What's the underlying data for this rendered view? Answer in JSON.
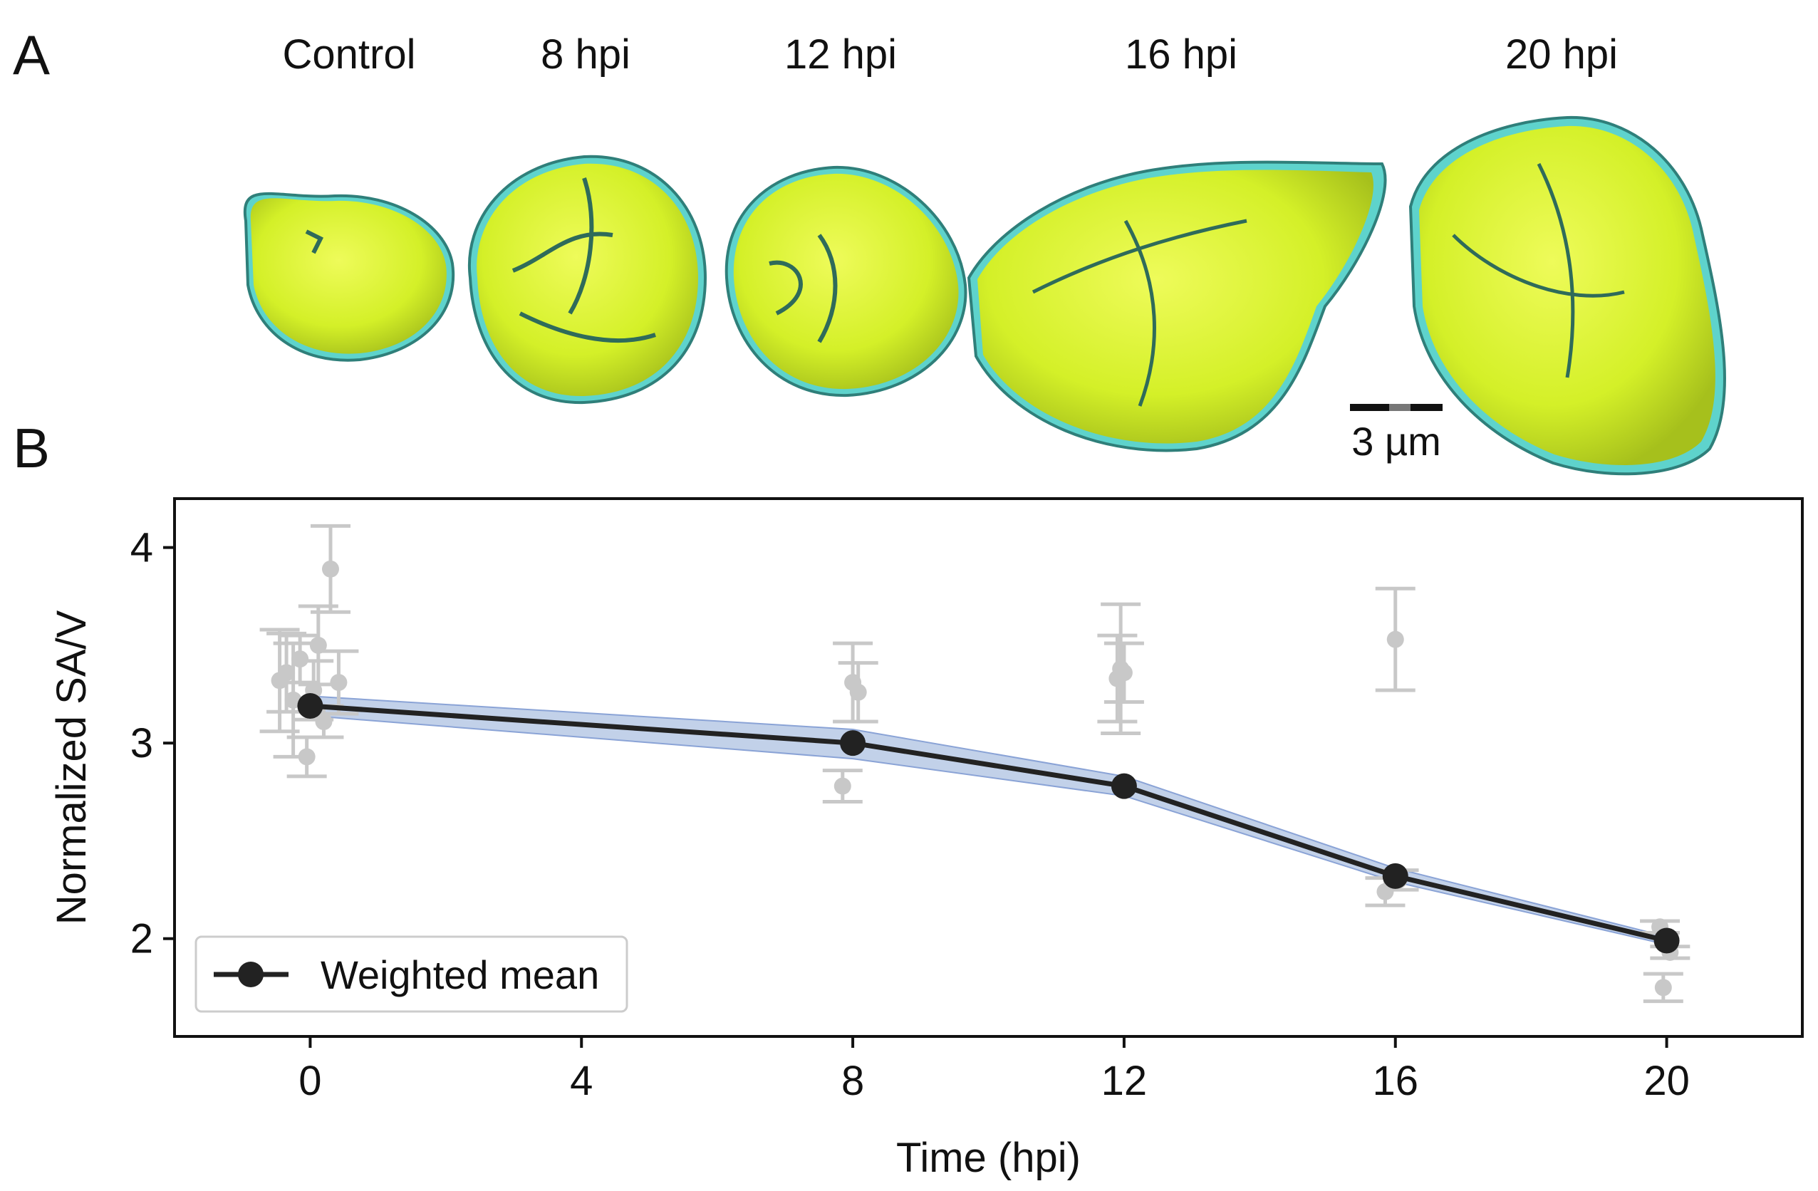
{
  "panel_a": {
    "letter": "A",
    "labels": [
      "Control",
      "8 hpi",
      "12 hpi",
      "16 hpi",
      "20 hpi"
    ],
    "scale_bar_label": "3 µm",
    "colors": {
      "cell_fill": "#d4f028",
      "membrane": "#5ed3cc",
      "shadow": "#2f6b5a"
    }
  },
  "panel_b": {
    "letter": "B"
  },
  "chart_data": {
    "type": "line",
    "xlabel": "Time (hpi)",
    "ylabel": "Normalized SA/V",
    "xlim": [
      -2,
      22
    ],
    "ylim": [
      1.5,
      4.25
    ],
    "x_ticks": [
      0,
      4,
      8,
      12,
      16,
      20
    ],
    "y_ticks": [
      2,
      3,
      4
    ],
    "grid": false,
    "legend": {
      "position": "bottom-left",
      "entries": [
        "Weighted mean"
      ]
    },
    "series": [
      {
        "name": "Weighted mean",
        "color": "#222222",
        "band_color": "#a8bde0",
        "x": [
          0,
          8,
          12,
          16,
          20
        ],
        "y": [
          3.19,
          3.0,
          2.78,
          2.32,
          1.99
        ],
        "band_lower": [
          3.14,
          2.92,
          2.73,
          2.29,
          1.97
        ],
        "band_upper": [
          3.24,
          3.07,
          2.83,
          2.36,
          2.01
        ]
      }
    ],
    "individual_points": {
      "color": "#c8c8c8",
      "points": [
        {
          "x": -0.45,
          "y": 3.32,
          "err": 0.26
        },
        {
          "x": -0.35,
          "y": 3.36,
          "err": 0.2
        },
        {
          "x": -0.25,
          "y": 3.22,
          "err": 0.29
        },
        {
          "x": -0.15,
          "y": 3.43,
          "err": 0.12
        },
        {
          "x": -0.05,
          "y": 2.93,
          "err": 0.1
        },
        {
          "x": 0.05,
          "y": 3.27,
          "err": 0.15
        },
        {
          "x": 0.12,
          "y": 3.5,
          "err": 0.2
        },
        {
          "x": 0.2,
          "y": 3.11,
          "err": 0.08
        },
        {
          "x": 0.3,
          "y": 3.89,
          "err": 0.22
        },
        {
          "x": 0.42,
          "y": 3.31,
          "err": 0.16
        },
        {
          "x": 7.85,
          "y": 2.78,
          "err": 0.08
        },
        {
          "x": 8.0,
          "y": 3.31,
          "err": 0.2
        },
        {
          "x": 8.08,
          "y": 3.26,
          "err": 0.15
        },
        {
          "x": 11.9,
          "y": 3.33,
          "err": 0.22
        },
        {
          "x": 11.95,
          "y": 3.38,
          "err": 0.33
        },
        {
          "x": 12.0,
          "y": 3.36,
          "err": 0.15
        },
        {
          "x": 16.0,
          "y": 3.53,
          "err": 0.26
        },
        {
          "x": 15.85,
          "y": 2.24,
          "err": 0.07
        },
        {
          "x": 16.05,
          "y": 2.3,
          "err": 0.05
        },
        {
          "x": 19.9,
          "y": 2.06,
          "err": 0.03
        },
        {
          "x": 19.95,
          "y": 1.75,
          "err": 0.07
        },
        {
          "x": 20.05,
          "y": 1.93,
          "err": 0.03
        }
      ]
    }
  }
}
